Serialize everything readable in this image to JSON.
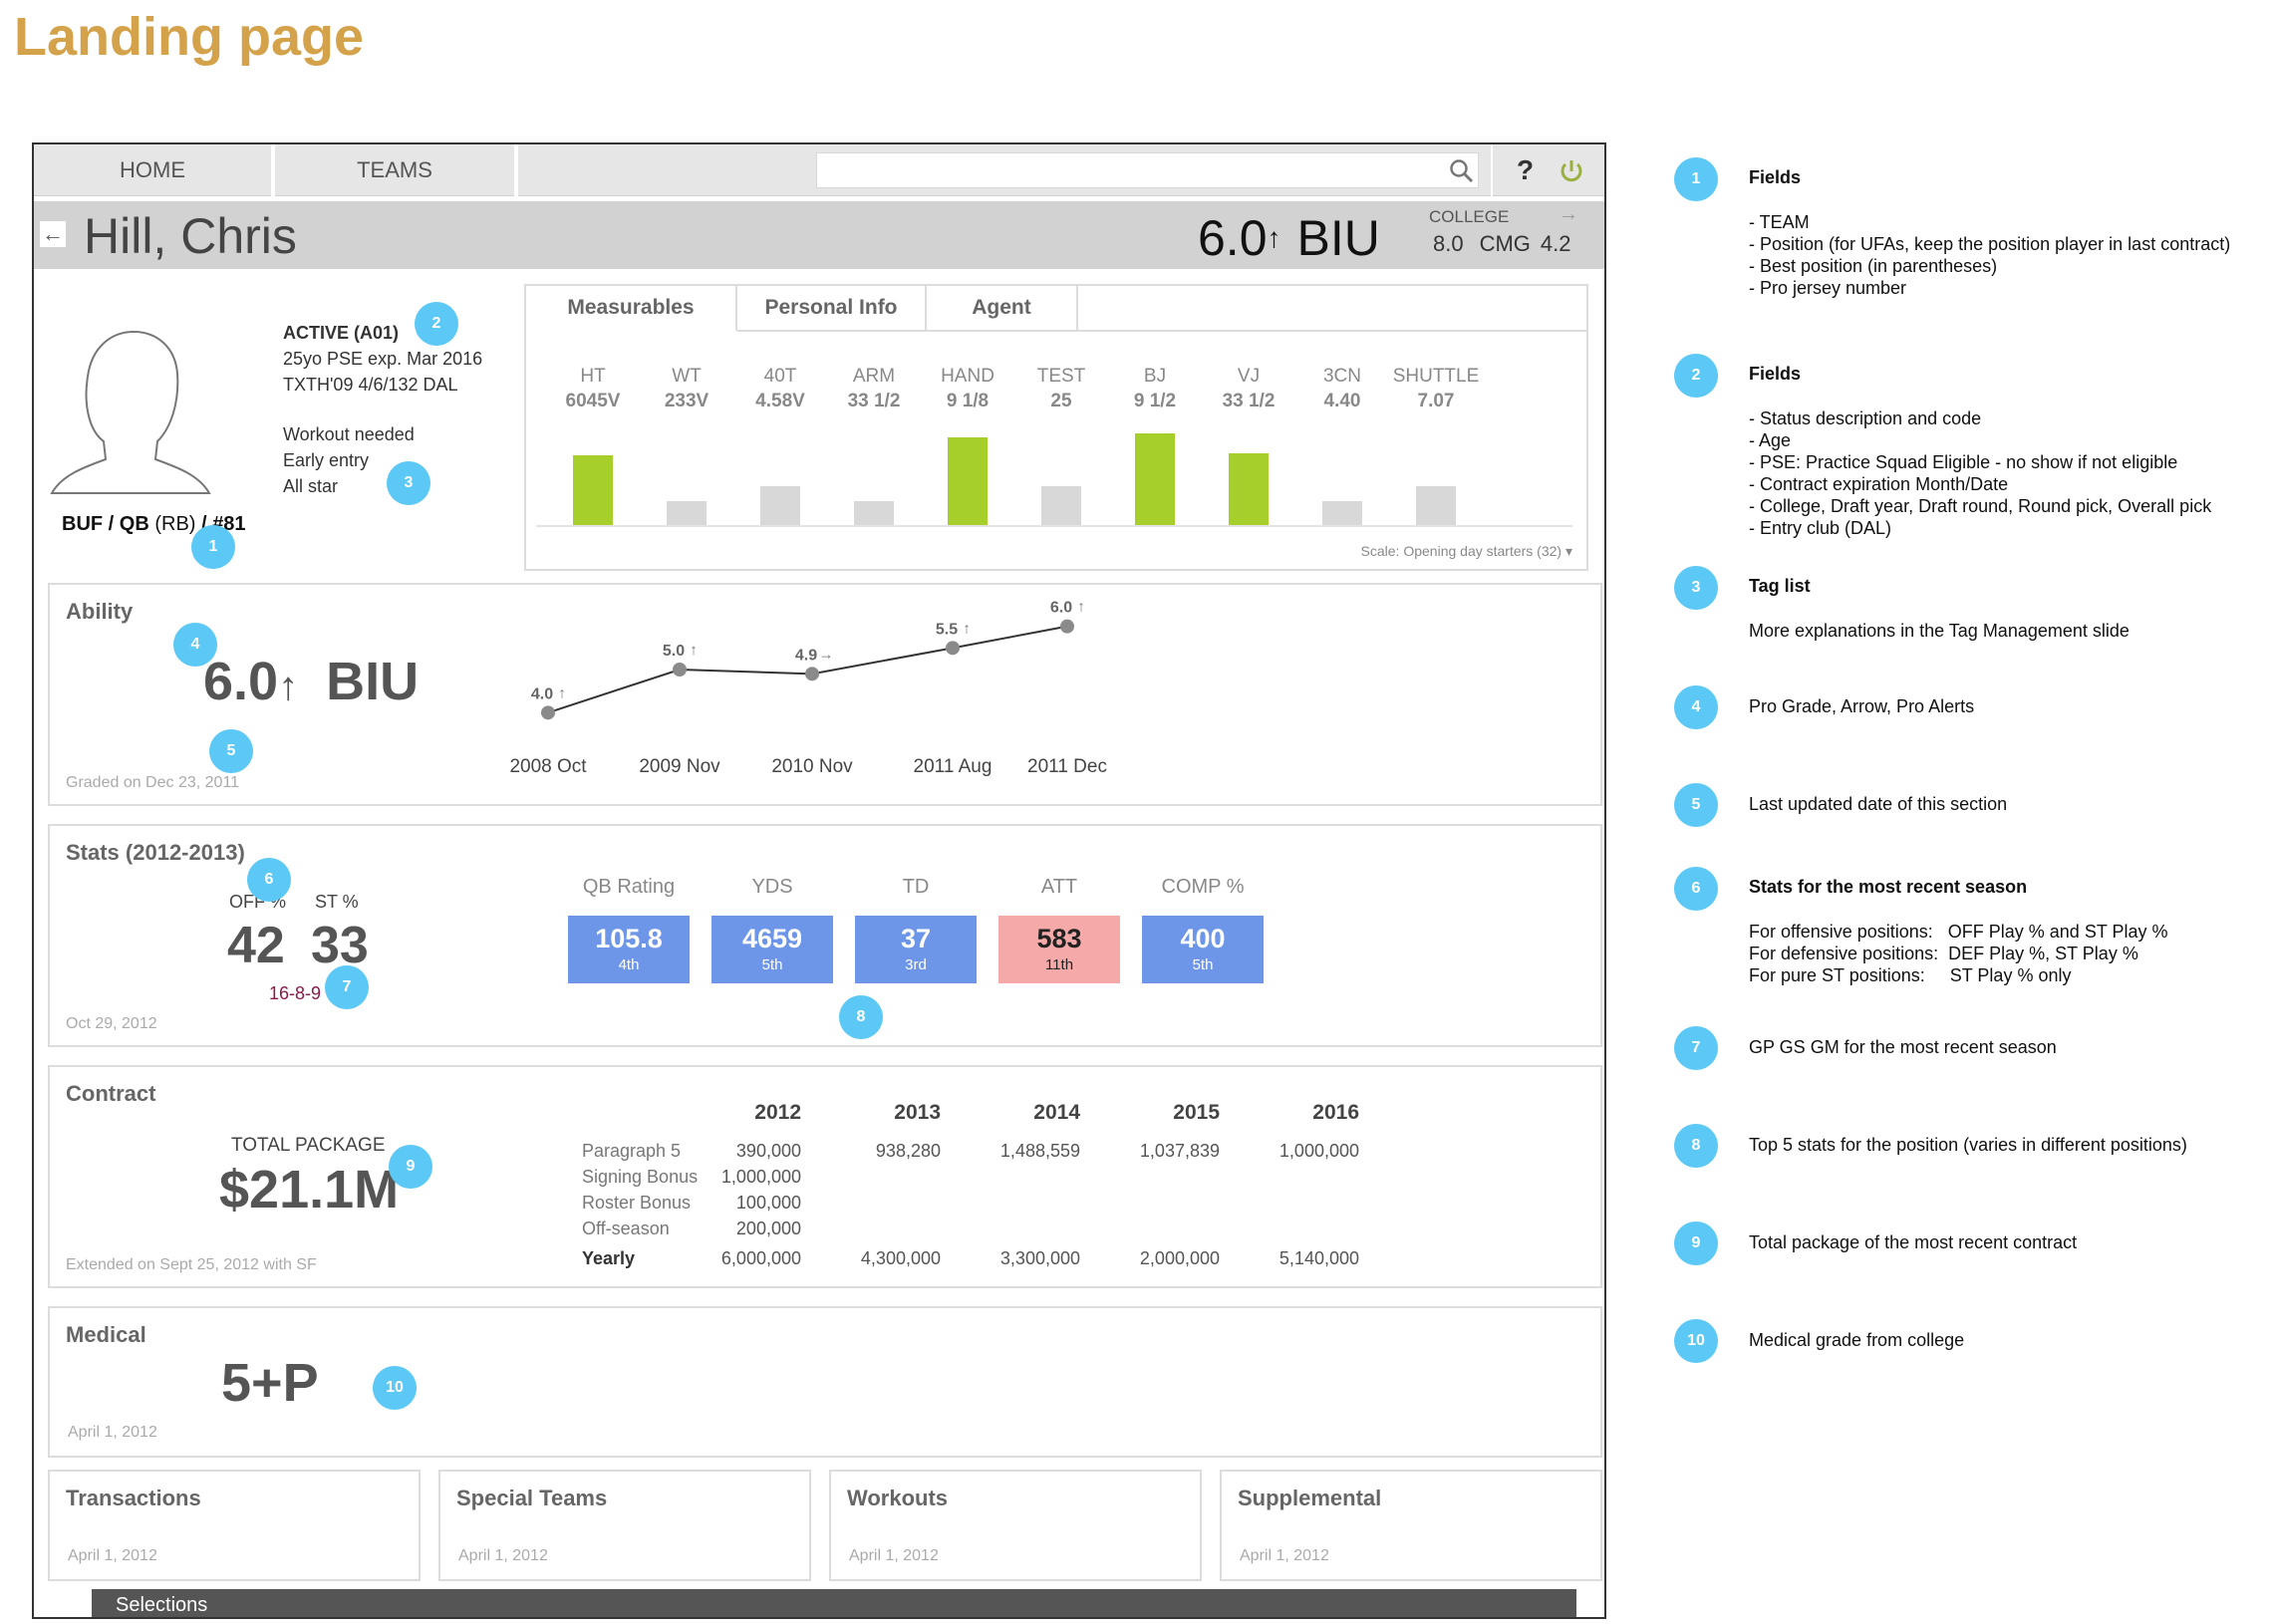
{
  "slide_title": "Landing page",
  "nav": {
    "home": "HOME",
    "teams": "TEAMS",
    "help": "?"
  },
  "player": {
    "name": "Hill, Chris",
    "grade": "6.0",
    "grade_arrow": "↑",
    "grade_alert": "BIU",
    "college_label": "COLLEGE",
    "college_grade": "8.0",
    "cmg_label": "CMG",
    "cmg_value": "4.2"
  },
  "profile": {
    "status": "ACTIVE (A01)",
    "line2": "25yo  PSE  exp. Mar 2016",
    "line3": "TXTH'09 4/6/132 DAL",
    "tags": [
      "Workout needed",
      "Early entry",
      "All star"
    ],
    "team_pos_a": "BUF / QB",
    "team_pos_b": "(RB)",
    "team_pos_c": " / #81"
  },
  "measurables": {
    "tabs": [
      "Measurables",
      "Personal Info",
      "Agent"
    ],
    "items": [
      {
        "name": "HT",
        "value": "6045V",
        "level": 0.76,
        "highlight": true
      },
      {
        "name": "WT",
        "value": "233V",
        "level": 0.26,
        "highlight": false
      },
      {
        "name": "40T",
        "value": "4.58V",
        "level": 0.42,
        "highlight": false
      },
      {
        "name": "ARM",
        "value": "33 1/2",
        "level": 0.26,
        "highlight": false
      },
      {
        "name": "HAND",
        "value": "9 1/8",
        "level": 0.96,
        "highlight": true
      },
      {
        "name": "TEST",
        "value": "25",
        "level": 0.42,
        "highlight": false
      },
      {
        "name": "BJ",
        "value": "9 1/2",
        "level": 1.0,
        "highlight": true
      },
      {
        "name": "VJ",
        "value": "33 1/2",
        "level": 0.78,
        "highlight": true
      },
      {
        "name": "3CN",
        "value": "4.40",
        "level": 0.26,
        "highlight": false
      },
      {
        "name": "SHUTTLE",
        "value": "7.07",
        "level": 0.42,
        "highlight": false
      }
    ],
    "scale_note": "Scale: Opening day starters (32) ▾",
    "colors": {
      "highlight": "#a7cf2b",
      "normal": "#d8d8d8"
    }
  },
  "ability": {
    "label": "Ability",
    "grade": "6.0",
    "arrow": "↑",
    "alert": "BIU",
    "graded_on": "Graded on Dec 23, 2011",
    "chart_data": {
      "type": "line",
      "x": [
        "2008 Oct",
        "2009 Nov",
        "2010 Nov",
        "2011 Aug",
        "2011 Dec"
      ],
      "values": [
        4.0,
        5.0,
        4.9,
        5.5,
        6.0
      ],
      "point_labels": [
        "4.0",
        "5.0",
        "4.9",
        "5.5",
        "6.0"
      ],
      "trend": [
        "↑",
        "↑",
        "→",
        "↑",
        "↑"
      ]
    }
  },
  "stats": {
    "label": "Stats (2012-2013)",
    "off_label": "OFF %",
    "st_label": "ST %",
    "off": "42",
    "st": "33",
    "gp": "16-8-9",
    "date": "Oct 29, 2012",
    "items": [
      {
        "name": "QB Rating",
        "value": "105.8",
        "rank": "4th",
        "color": "#6d96e9"
      },
      {
        "name": "YDS",
        "value": "4659",
        "rank": "5th",
        "color": "#6d96e9"
      },
      {
        "name": "TD",
        "value": "37",
        "rank": "3rd",
        "color": "#6d96e9"
      },
      {
        "name": "ATT",
        "value": "583",
        "rank": "11th",
        "color": "#f5a9a9"
      },
      {
        "name": "COMP %",
        "value": "400",
        "rank": "5th",
        "color": "#6d96e9"
      }
    ]
  },
  "contract": {
    "label": "Contract",
    "total_label": "TOTAL PACKAGE",
    "total": "$21.1M",
    "extended": "Extended on Sept 25, 2012 with SF",
    "years": [
      "2012",
      "2013",
      "2014",
      "2015",
      "2016"
    ],
    "rows": [
      {
        "label": "Paragraph 5",
        "values": [
          "390,000",
          "938,280",
          "1,488,559",
          "1,037,839",
          "1,000,000"
        ]
      },
      {
        "label": "Signing Bonus",
        "values": [
          "1,000,000",
          "",
          "",
          "",
          ""
        ]
      },
      {
        "label": "Roster Bonus",
        "values": [
          "100,000",
          "",
          "",
          "",
          ""
        ]
      },
      {
        "label": "Off-season",
        "values": [
          "200,000",
          "",
          "",
          "",
          ""
        ]
      },
      {
        "label": "Yearly",
        "values": [
          "6,000,000",
          "4,300,000",
          "3,300,000",
          "2,000,000",
          "5,140,000"
        ]
      }
    ]
  },
  "medical": {
    "label": "Medical",
    "grade": "5+P",
    "date": "April 1, 2012"
  },
  "bottom_panels": [
    {
      "label": "Transactions",
      "date": "April 1, 2012"
    },
    {
      "label": "Special Teams",
      "date": "April 1, 2012"
    },
    {
      "label": "Workouts",
      "date": "April 1, 2012"
    },
    {
      "label": "Supplemental",
      "date": "April 1, 2012"
    }
  ],
  "selections_label": "Selections",
  "badge_numbers": [
    "1",
    "2",
    "3",
    "4",
    "5",
    "6",
    "7",
    "8",
    "9",
    "10"
  ],
  "notes": [
    {
      "num": "1",
      "title": "Fields",
      "lines": [
        "- TEAM",
        "- Position (for UFAs, keep the position player in last contract)",
        "- Best position (in parentheses)",
        "- Pro jersey number"
      ]
    },
    {
      "num": "2",
      "title": "Fields",
      "lines": [
        "- Status description and code",
        "- Age",
        "- PSE: Practice Squad Eligible - no show if not eligible",
        "- Contract expiration Month/Date",
        "- College, Draft year, Draft round, Round pick, Overall pick",
        "- Entry club (DAL)"
      ]
    },
    {
      "num": "3",
      "title": "Tag list",
      "lines": [
        "More explanations in the Tag Management slide"
      ]
    },
    {
      "num": "4",
      "title": "",
      "lines": [
        "Pro Grade, Arrow, Pro Alerts"
      ]
    },
    {
      "num": "5",
      "title": "",
      "lines": [
        "Last updated date of this section"
      ]
    },
    {
      "num": "6",
      "title": "Stats for the most recent season",
      "lines": [
        "For offensive positions:   OFF Play % and ST Play %",
        "For defensive positions:  DEF Play %, ST Play %",
        "For pure ST positions:     ST Play % only"
      ]
    },
    {
      "num": "7",
      "title": "",
      "lines": [
        "GP GS GM for the most recent season"
      ]
    },
    {
      "num": "8",
      "title": "",
      "lines": [
        "Top 5 stats for the position (varies in different positions)"
      ]
    },
    {
      "num": "9",
      "title": "",
      "lines": [
        "Total package of the most recent contract"
      ]
    },
    {
      "num": "10",
      "title": "",
      "lines": [
        "Medical grade from college"
      ]
    }
  ]
}
